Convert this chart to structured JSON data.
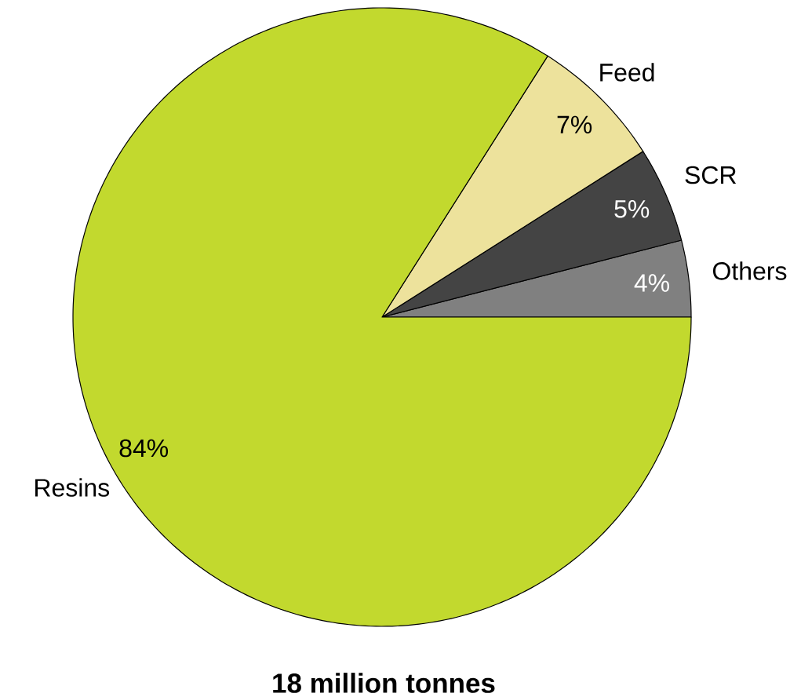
{
  "chart_data": {
    "type": "pie",
    "title": "18 million tonnes",
    "categories": [
      "Others",
      "SCR",
      "Feed",
      "Resins"
    ],
    "values": [
      4,
      5,
      7,
      84
    ],
    "colors": [
      "#808080",
      "#444444",
      "#ede29c",
      "#c2d92e"
    ],
    "value_labels": [
      "4%",
      "5%",
      "7%",
      "84%"
    ]
  }
}
